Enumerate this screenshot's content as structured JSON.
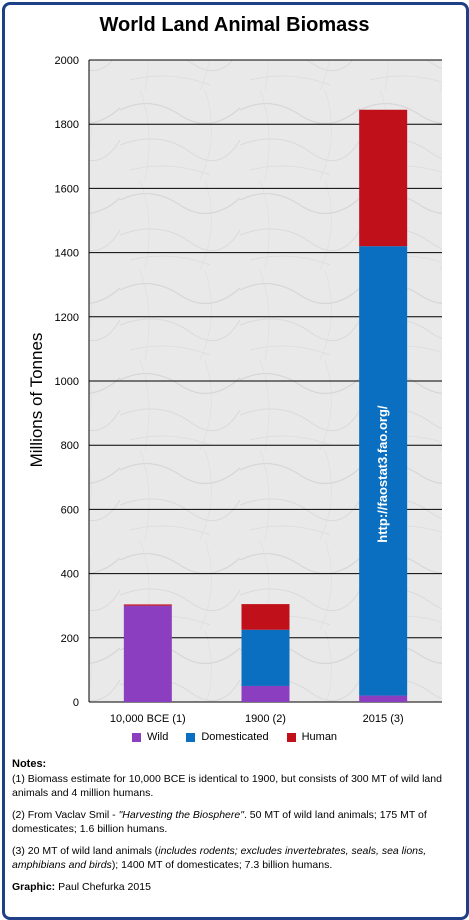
{
  "chart_data": {
    "type": "bar",
    "stacked": true,
    "title": "World Land Animal Biomass",
    "ylabel": "Millions of Tonnes",
    "ylim": [
      0,
      2000
    ],
    "yticks": [
      0,
      200,
      400,
      600,
      800,
      1000,
      1200,
      1400,
      1600,
      1800,
      2000
    ],
    "categories": [
      "10,000 BCE (1)",
      "1900 (2)",
      "2015 (3)"
    ],
    "series": [
      {
        "name": "Wild",
        "color": "#8b3fc0",
        "values": [
          300,
          50,
          20
        ]
      },
      {
        "name": "Domesticated",
        "color": "#0a6fc0",
        "values": [
          0,
          175,
          1400
        ]
      },
      {
        "name": "Human",
        "color": "#c0101a",
        "values": [
          4,
          80,
          425
        ]
      }
    ],
    "annotation": "http://faostat3.fao.org/",
    "grid": true,
    "legend_position": "bottom"
  },
  "notes": {
    "title": "Notes:",
    "n1": "(1) Biomass estimate for 10,000 BCE is identical to 1900, but consists of 300 MT of wild land animals and 4 million humans.",
    "n2_prefix": "(2) From Vaclav Smil - ",
    "n2_book": "\"Harvesting the Biosphere\"",
    "n2_rest": ". 50 MT of wild land animals; 175 MT of domesticates; 1.6 billion humans.",
    "n3_prefix": "(3) 20 MT of wild land animals (",
    "n3_italic": "includes rodents; excludes invertebrates, seals, sea lions, amphibians and birds",
    "n3_rest": "); 1400 MT of domesticates; 7.3 billion humans.",
    "credit_label": "Graphic:",
    "credit_name": " Paul Chefurka 2015"
  }
}
